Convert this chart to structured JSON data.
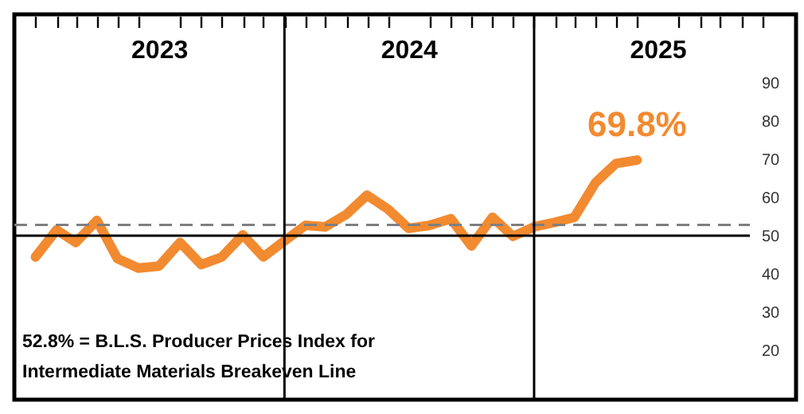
{
  "chart_data": {
    "type": "line",
    "x": [
      "2023-01",
      "2023-02",
      "2023-03",
      "2023-04",
      "2023-05",
      "2023-06",
      "2023-07",
      "2023-08",
      "2023-09",
      "2023-10",
      "2023-11",
      "2023-12",
      "2024-01",
      "2024-02",
      "2024-03",
      "2024-04",
      "2024-05",
      "2024-06",
      "2024-07",
      "2024-08",
      "2024-09",
      "2024-10",
      "2024-11",
      "2024-12",
      "2025-01",
      "2025-02",
      "2025-03",
      "2025-04",
      "2025-05",
      "2025-06"
    ],
    "series": [
      {
        "color": "#f28a30",
        "values": [
          44.4,
          51.5,
          48.2,
          54,
          44,
          41.5,
          42,
          48.2,
          42.4,
          44.4,
          50.2,
          44.4,
          48.6,
          52.7,
          52.3,
          55.6,
          60.6,
          56.9,
          51.9,
          52.7,
          54.4,
          47.3,
          54.8,
          49.8,
          52.3,
          53.5,
          54.8,
          63.9,
          68.9,
          69.8
        ],
        "value_labels": [
          null,
          null,
          null,
          null,
          null,
          null,
          null,
          null,
          null,
          null,
          null,
          null,
          null,
          null,
          null,
          null,
          null,
          null,
          null,
          null,
          null,
          null,
          null,
          null,
          null,
          null,
          null,
          null,
          null,
          "69.8%"
        ]
      }
    ],
    "xlim": [
      "2022-12-01",
      "2026-01-20"
    ],
    "xticks": [
      {
        "value": "2023-01",
        "label": null
      },
      {
        "value": "2023-02",
        "label": null
      },
      {
        "value": "2023-03",
        "label": null
      },
      {
        "value": "2023-04",
        "label": null
      },
      {
        "value": "2023-05",
        "label": null
      },
      {
        "value": "2023-06",
        "label": null
      },
      {
        "value": "2023-07",
        "label": "2023"
      },
      {
        "value": "2023-08",
        "label": null
      },
      {
        "value": "2023-09",
        "label": null
      },
      {
        "value": "2023-10",
        "label": null
      },
      {
        "value": "2023-11",
        "label": null
      },
      {
        "value": "2023-12",
        "label": null
      },
      {
        "value": "2024-01",
        "label": null
      },
      {
        "value": "2024-02",
        "label": null
      },
      {
        "value": "2024-03",
        "label": null
      },
      {
        "value": "2024-04",
        "label": null
      },
      {
        "value": "2024-05",
        "label": null
      },
      {
        "value": "2024-06",
        "label": null
      },
      {
        "value": "2024-07",
        "label": "2024"
      },
      {
        "value": "2024-08",
        "label": null
      },
      {
        "value": "2024-09",
        "label": null
      },
      {
        "value": "2024-10",
        "label": null
      },
      {
        "value": "2024-11",
        "label": null
      },
      {
        "value": "2024-12",
        "label": null
      },
      {
        "value": "2025-01",
        "label": null
      },
      {
        "value": "2025-02",
        "label": null
      },
      {
        "value": "2025-03",
        "label": null
      },
      {
        "value": "2025-04",
        "label": null
      },
      {
        "value": "2025-05",
        "label": null
      },
      {
        "value": "2025-06",
        "label": null
      },
      {
        "value": "2025-07",
        "label": "2025"
      },
      {
        "value": "2025-08",
        "label": null
      },
      {
        "value": "2025-09",
        "label": null
      },
      {
        "value": "2025-10",
        "label": null
      },
      {
        "value": "2025-11",
        "label": null
      },
      {
        "value": "2025-12",
        "label": null
      }
    ],
    "ylim": [
      7,
      108
    ],
    "yticks": [
      20,
      30,
      40,
      50,
      60,
      70,
      80,
      90
    ],
    "grid": false,
    "marker": "none",
    "line_style": "solid",
    "ref_lines": [
      {
        "axis": "y",
        "value": 50,
        "label": null,
        "color": "#000000",
        "line_style": "solid"
      },
      {
        "axis": "y",
        "value": 52.8,
        "label": null,
        "color": "#7f7f7f",
        "line_style": "dashed"
      },
      {
        "axis": "x",
        "value": "2024-01-01",
        "label": null,
        "color": "#000000",
        "line_style": "solid"
      },
      {
        "axis": "x",
        "value": "2025-01-01",
        "label": null,
        "color": "#000000",
        "line_style": "solid"
      }
    ],
    "annotations": [
      "52.8% = B.L.S. Producer Prices Index for\nIntermediate Materials Breakeven Line"
    ]
  }
}
